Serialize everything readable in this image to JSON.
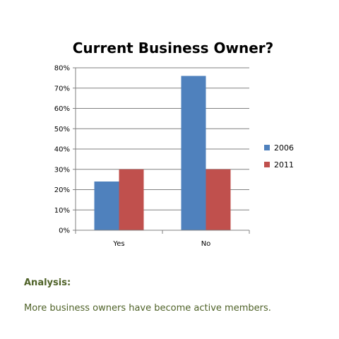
{
  "chart_data": {
    "type": "bar",
    "title": "Current Business Owner?",
    "categories": [
      "Yes",
      "No"
    ],
    "series": [
      {
        "name": "2006",
        "values": [
          24,
          76
        ],
        "color": "#4f81bd"
      },
      {
        "name": "2011",
        "values": [
          30,
          30
        ],
        "color": "#c0504d"
      }
    ],
    "ylim": [
      0,
      80
    ],
    "ytick_step": 10,
    "ytick_format": "percent",
    "grid": true,
    "legend": "right"
  },
  "analysis": {
    "heading": "Analysis:",
    "body": "More business owners have become active members."
  }
}
